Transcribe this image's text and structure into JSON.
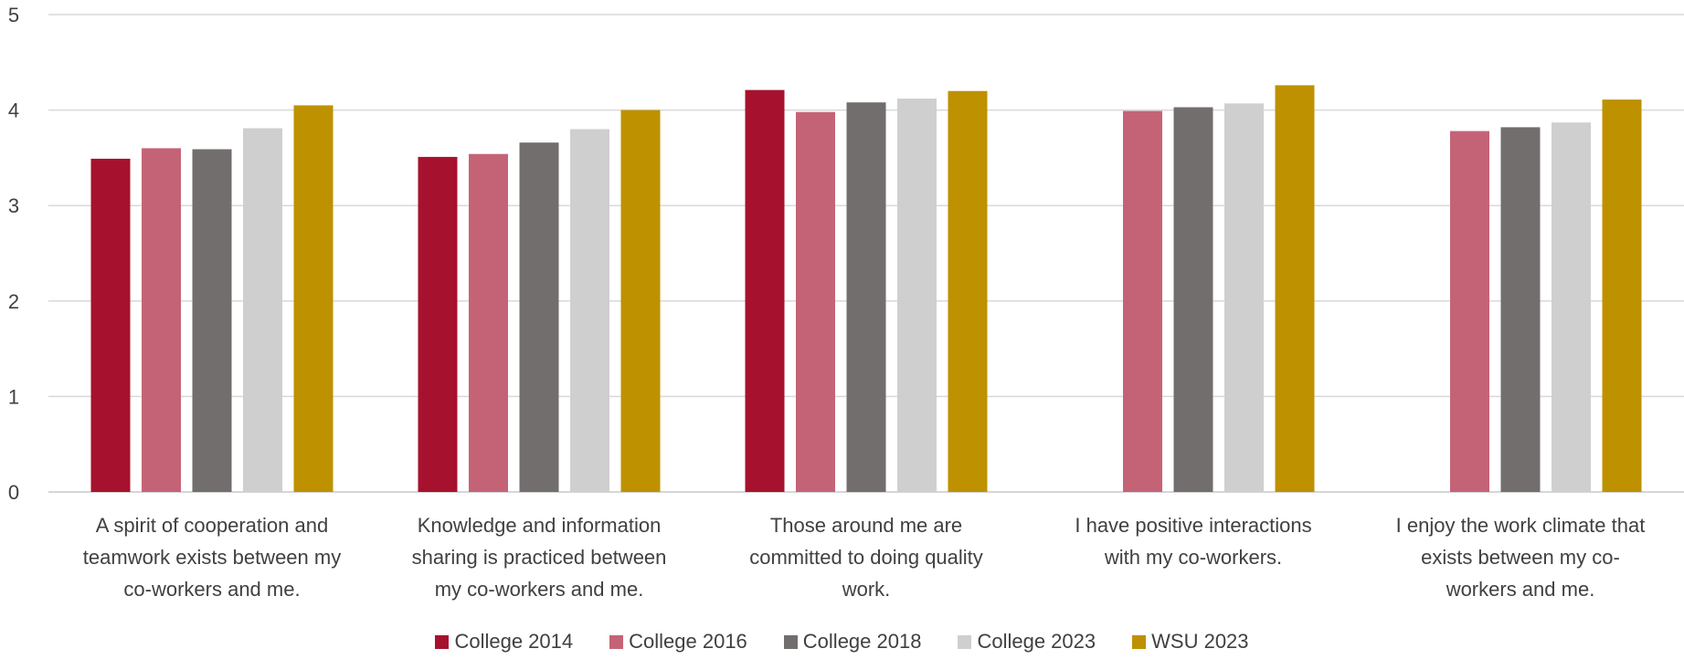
{
  "chart_data": {
    "type": "bar",
    "categories": [
      "A spirit of cooperation and teamwork exists between my co-workers and me.",
      "Knowledge and information sharing is practiced between my co-workers and me.",
      "Those around me are committed to doing quality work.",
      "I have positive interactions with my co-workers.",
      "I enjoy the work climate that exists between my co-workers and me."
    ],
    "category_label_lines": [
      [
        "A spirit of cooperation and",
        "teamwork exists between my",
        "co-workers and me."
      ],
      [
        "Knowledge and information",
        "sharing is practiced between",
        "my co-workers and me."
      ],
      [
        "Those around me are",
        "committed to doing quality",
        "work."
      ],
      [
        "I have positive interactions",
        "with my co-workers."
      ],
      [
        "I enjoy the work climate that",
        "exists between my co-",
        "workers and me."
      ]
    ],
    "series": [
      {
        "name": "College 2014",
        "color": "#A6122D",
        "values": [
          3.49,
          3.51,
          4.21,
          null,
          null
        ]
      },
      {
        "name": "College 2016",
        "color": "#C56376",
        "values": [
          3.6,
          3.54,
          3.98,
          3.99,
          3.78
        ]
      },
      {
        "name": "College 2018",
        "color": "#726E6D",
        "values": [
          3.59,
          3.66,
          4.08,
          4.03,
          3.82
        ]
      },
      {
        "name": "College 2023",
        "color": "#D0CFCF",
        "values": [
          3.81,
          3.8,
          4.12,
          4.07,
          3.87
        ]
      },
      {
        "name": "WSU 2023",
        "color": "#BE9100",
        "values": [
          4.05,
          4.0,
          4.2,
          4.26,
          4.11
        ]
      }
    ],
    "ylim": [
      0,
      5
    ],
    "yticks": [
      "0",
      "1",
      "2",
      "3",
      "4",
      "5"
    ],
    "grid": true,
    "legend_position": "bottom",
    "title": "",
    "xlabel": "",
    "ylabel": ""
  }
}
